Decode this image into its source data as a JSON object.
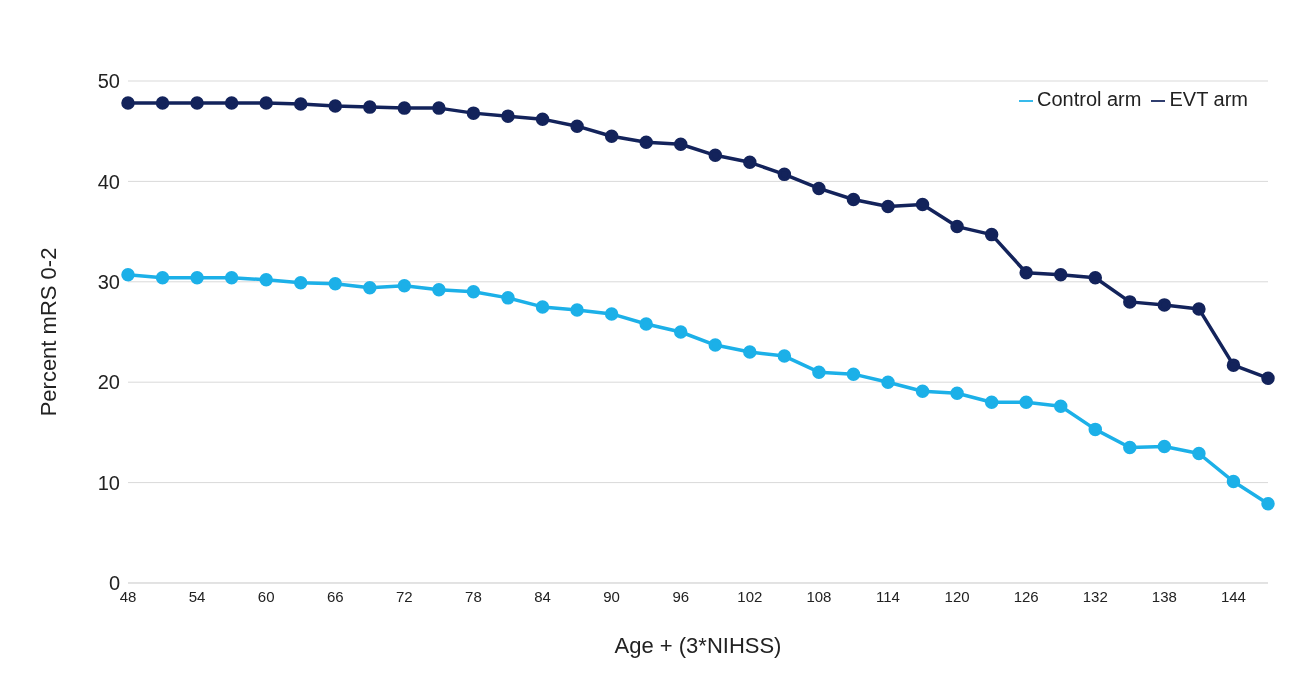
{
  "chart_data": {
    "type": "line",
    "xlabel": "Age + (3*NIHSS)",
    "ylabel": "Percent mRS 0-2",
    "categories": [
      "48",
      null,
      "54",
      null,
      "60",
      null,
      "66",
      null,
      "72",
      null,
      "78",
      null,
      "84",
      null,
      "90",
      null,
      "96",
      null,
      "102",
      null,
      "108",
      null,
      "114",
      null,
      "120",
      null,
      "126",
      null,
      "132",
      null,
      "138",
      null,
      "144",
      null
    ],
    "series": [
      {
        "name": "EVT arm",
        "color": "#13235b",
        "values": [
          47.8,
          47.8,
          47.8,
          47.8,
          47.8,
          47.7,
          47.5,
          47.4,
          47.3,
          47.3,
          46.8,
          46.5,
          46.2,
          45.5,
          44.5,
          43.9,
          43.7,
          42.6,
          41.9,
          40.7,
          39.3,
          38.2,
          37.5,
          37.7,
          35.5,
          34.7,
          30.9,
          30.7,
          30.4,
          28.0,
          27.7,
          27.3,
          21.7,
          20.4
        ]
      },
      {
        "name": "Control arm",
        "color": "#1cb0e8",
        "values": [
          30.7,
          30.4,
          30.4,
          30.4,
          30.2,
          29.9,
          29.8,
          29.4,
          29.6,
          29.2,
          29.0,
          28.4,
          27.5,
          27.2,
          26.8,
          25.8,
          25.0,
          23.7,
          23.0,
          22.6,
          21.0,
          20.8,
          20.0,
          19.1,
          18.9,
          18.0,
          18.0,
          17.6,
          15.3,
          13.5,
          13.6,
          12.9,
          10.1,
          7.9
        ]
      }
    ],
    "ylim": [
      0,
      50
    ],
    "yticks": [
      0,
      10,
      20,
      30,
      40,
      50
    ],
    "grid": "y",
    "legend": "top right",
    "marker": "circle",
    "line_style": "solid"
  }
}
